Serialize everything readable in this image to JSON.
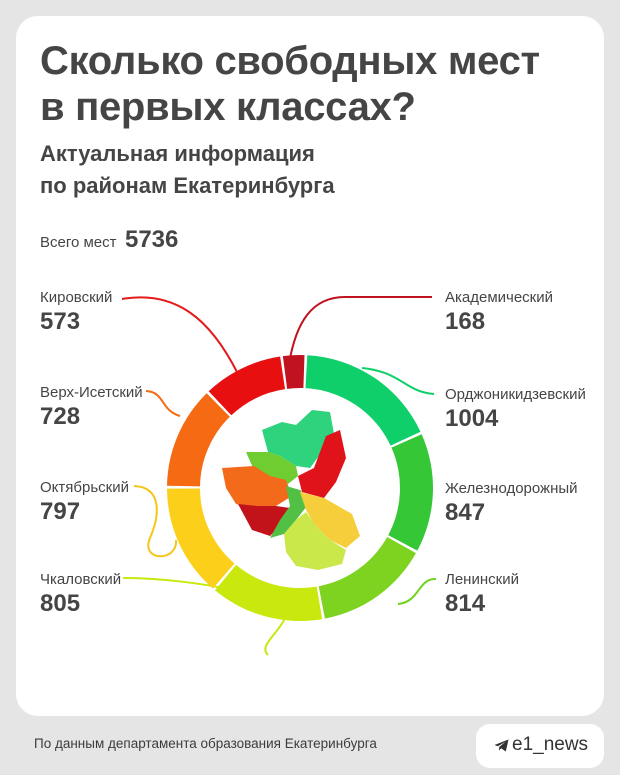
{
  "header": {
    "title_line1": "Сколько свободных мест",
    "title_line2": "в первых классах?",
    "subtitle_line1": "Актуальная информация",
    "subtitle_line2": "по районам Екатеринбурга"
  },
  "total": {
    "label": "Всего мест",
    "value": "5736"
  },
  "chart_data": {
    "type": "pie",
    "title": "Сколько свободных мест в первых классах?",
    "subtitle": "Актуальная информация по районам Екатеринбурга",
    "total": 5736,
    "slices": [
      {
        "label": "Академический",
        "value": 168,
        "color": "#c1121f"
      },
      {
        "label": "Орджоникидзевский",
        "value": 1004,
        "color": "#0fcf6a"
      },
      {
        "label": "Железнодорожный",
        "value": 847,
        "color": "#36c737"
      },
      {
        "label": "Ленинский",
        "value": 814,
        "color": "#7ed321"
      },
      {
        "label": "Чкаловский",
        "value": 805,
        "color": "#c9e80e"
      },
      {
        "label": "Октябрьский",
        "value": 797,
        "color": "#fccf1b"
      },
      {
        "label": "Верх-Исетский",
        "value": 728,
        "color": "#f66a14"
      },
      {
        "label": "Кировский",
        "value": 573,
        "color": "#e70f0f"
      }
    ]
  },
  "districts": {
    "kirovsky": {
      "name": "Кировский",
      "value": "573"
    },
    "akademichesky": {
      "name": "Академический",
      "value": "168"
    },
    "verkh_isetsky": {
      "name": "Верх-Исетский",
      "value": "728"
    },
    "ordzhonikidzevsky": {
      "name": "Орджоникидзевский",
      "value": "1004"
    },
    "oktyabrsky": {
      "name": "Октябрьский",
      "value": "797"
    },
    "zheleznodorozhny": {
      "name": "Железнодорожный",
      "value": "847"
    },
    "chkalovsky": {
      "name": "Чкаловский",
      "value": "805"
    },
    "leninsky": {
      "name": "Ленинский",
      "value": "814"
    }
  },
  "footer": {
    "source": "По данным департамента образования Екатеринбурга",
    "brand": "e1_news",
    "brand_icon": "telegram-icon"
  }
}
